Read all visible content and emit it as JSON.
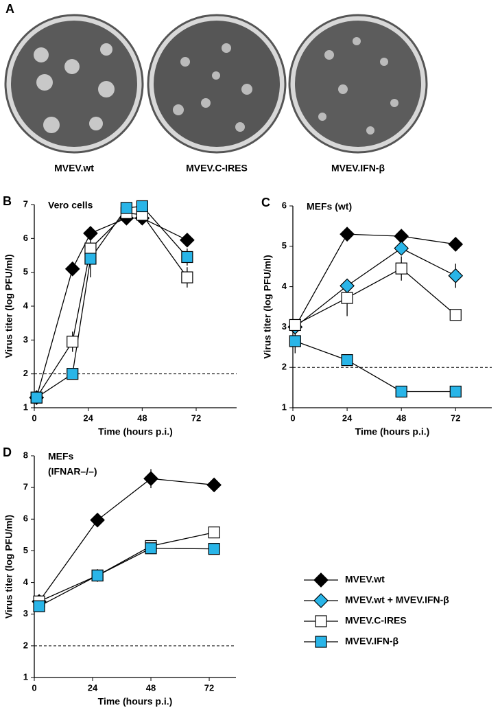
{
  "panel_a": {
    "label": "A",
    "plates": [
      "MVEV.wt",
      "MVEV.C-IRES",
      "MVEV.IFN-β"
    ]
  },
  "chart_data": [
    {
      "type": "line",
      "panel": "B",
      "annotation": [
        "Vero cells"
      ],
      "x_label": "Time (hours p.i.)",
      "y_label": "Virus titer (log PFU/ml)",
      "xlim": [
        0,
        90
      ],
      "xticks": [
        0,
        24,
        48,
        72
      ],
      "ylim": [
        1,
        7
      ],
      "yticks": [
        1,
        2,
        3,
        4,
        5,
        6,
        7
      ],
      "threshold": 2,
      "series": [
        {
          "name": "MVEV.wt",
          "marker": "diamond",
          "color": "#000000",
          "x": [
            1,
            17,
            25,
            41,
            48,
            68
          ],
          "values": [
            1.3,
            5.1,
            6.15,
            6.6,
            6.6,
            5.95
          ],
          "errors": [
            null,
            0.15,
            null,
            null,
            null,
            0.15
          ]
        },
        {
          "name": "MVEV.C-IRES",
          "marker": "square",
          "color": "#ffffff",
          "x": [
            1,
            17,
            25,
            41,
            48,
            68
          ],
          "values": [
            1.3,
            2.95,
            5.7,
            6.75,
            6.7,
            4.85
          ],
          "errors": [
            null,
            0.3,
            null,
            null,
            null,
            0.3
          ]
        },
        {
          "name": "MVEV.IFN-β",
          "marker": "square",
          "color": "#29b5e8",
          "x": [
            1,
            17,
            25,
            41,
            48,
            68
          ],
          "values": [
            1.3,
            2.0,
            5.4,
            6.9,
            6.95,
            5.45
          ],
          "errors": [
            null,
            null,
            0.55,
            null,
            null,
            0.25
          ]
        }
      ]
    },
    {
      "type": "line",
      "panel": "C",
      "annotation": [
        "MEFs (wt)"
      ],
      "x_label": "Time (hours p.i.)",
      "y_label": "Virus titer (log PFU/ml)",
      "xlim": [
        0,
        88
      ],
      "xticks": [
        0,
        24,
        48,
        72
      ],
      "ylim": [
        1,
        6
      ],
      "yticks": [
        1,
        2,
        3,
        4,
        5,
        6
      ],
      "threshold": 2,
      "legend": "outside",
      "series": [
        {
          "name": "MVEV.wt",
          "marker": "diamond",
          "color": "#000000",
          "x": [
            1,
            24,
            48,
            72
          ],
          "values": [
            3.0,
            5.3,
            5.25,
            5.05
          ],
          "errors": [
            null,
            null,
            null,
            null
          ]
        },
        {
          "name": "MVEV.wt + MVEV.IFN-β",
          "marker": "diamond",
          "color": "#29b5e8",
          "x": [
            1,
            24,
            48,
            72
          ],
          "values": [
            3.0,
            4.02,
            4.95,
            4.27
          ],
          "errors": [
            null,
            null,
            null,
            0.3
          ]
        },
        {
          "name": "MVEV.C-IRES",
          "marker": "square",
          "color": "#ffffff",
          "x": [
            1,
            24,
            48,
            72
          ],
          "values": [
            3.05,
            3.72,
            4.45,
            3.3
          ],
          "errors": [
            null,
            0.45,
            0.3,
            null
          ]
        },
        {
          "name": "MVEV.IFN-β",
          "marker": "square",
          "color": "#29b5e8",
          "x": [
            1,
            24,
            48,
            72
          ],
          "values": [
            2.65,
            2.18,
            1.4,
            1.4
          ],
          "errors": [
            0.3,
            null,
            null,
            null
          ]
        }
      ]
    },
    {
      "type": "line",
      "panel": "D",
      "annotation": [
        "MEFs",
        "(IFNAR–/–)"
      ],
      "x_label": "Time (hours p.i.)",
      "y_label": "Virus titer (log PFU/ml)",
      "xlim": [
        0,
        83
      ],
      "xticks": [
        0,
        24,
        48,
        72
      ],
      "ylim": [
        1,
        8
      ],
      "yticks": [
        1,
        2,
        3,
        4,
        5,
        6,
        7,
        8
      ],
      "threshold": 2,
      "series": [
        {
          "name": "MVEV.wt",
          "marker": "diamond",
          "color": "#000000",
          "x": [
            2,
            26,
            48,
            74
          ],
          "values": [
            3.4,
            5.97,
            7.28,
            7.08
          ],
          "errors": [
            null,
            0.15,
            0.3,
            null
          ]
        },
        {
          "name": "MVEV.C-IRES",
          "marker": "square",
          "color": "#ffffff",
          "x": [
            2,
            26,
            48,
            74
          ],
          "values": [
            3.4,
            4.22,
            5.15,
            5.58
          ],
          "errors": [
            null,
            0.2,
            null,
            null
          ]
        },
        {
          "name": "MVEV.IFN-β",
          "marker": "square",
          "color": "#29b5e8",
          "x": [
            2,
            26,
            48,
            74
          ],
          "values": [
            3.25,
            4.22,
            5.08,
            5.06
          ],
          "errors": [
            null,
            null,
            null,
            null
          ]
        }
      ]
    }
  ]
}
